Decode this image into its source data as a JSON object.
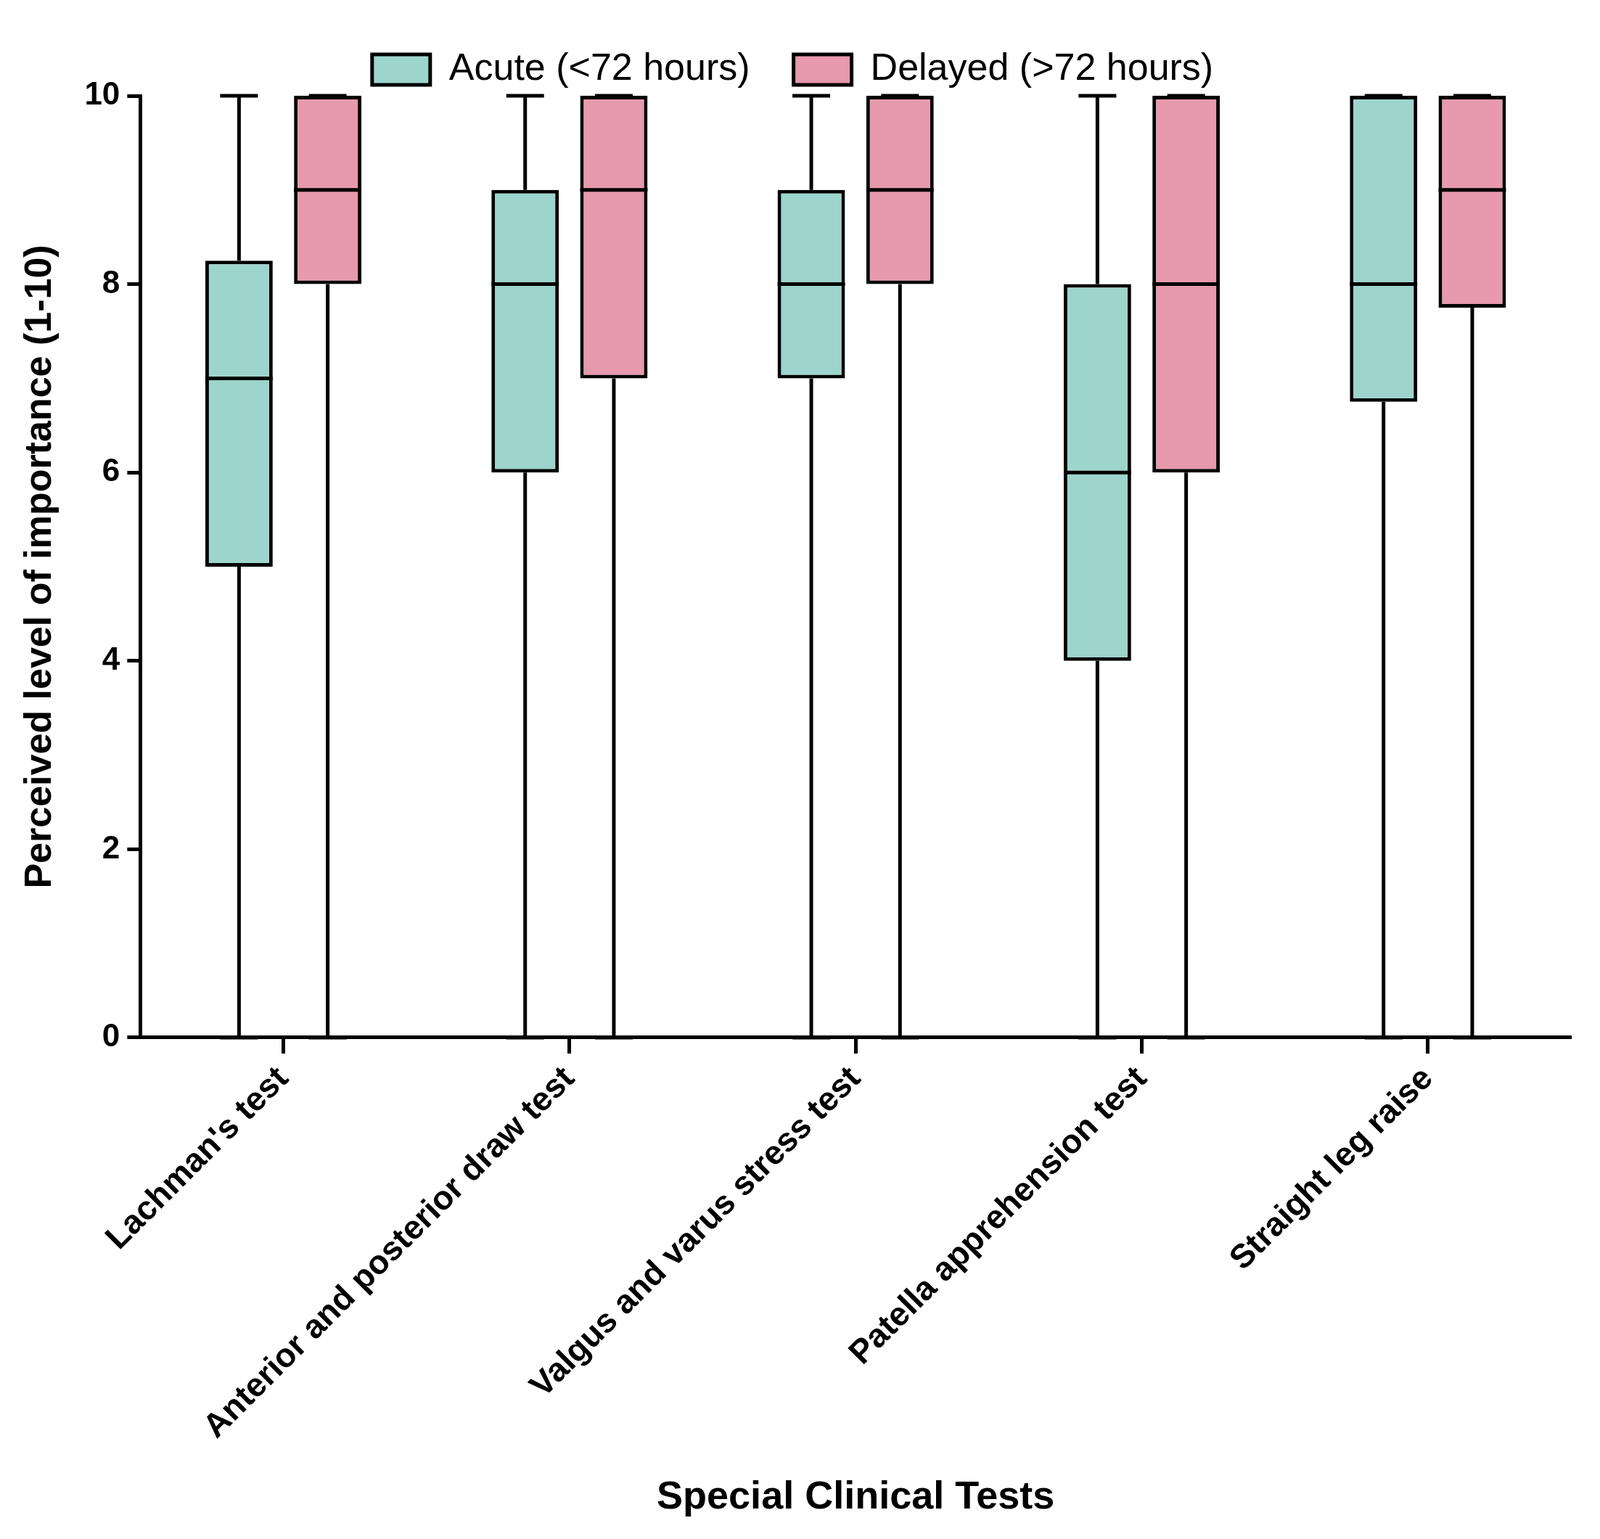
{
  "chart_data": {
    "type": "boxplot",
    "xlabel": "Special Clinical Tests",
    "ylabel": "Perceived level of importance (1-10)",
    "categories": [
      "Lachman's test",
      "Anterior and posterior draw test",
      "Valgus and varus stress test",
      "Patella apprehension test",
      "Straight leg raise"
    ],
    "series": [
      {
        "name": "Acute (<72 hours)",
        "color": "#9dd5cc",
        "min": [
          0,
          0,
          0,
          0,
          0
        ],
        "q1": [
          5,
          6,
          7,
          4,
          6.75
        ],
        "median": [
          7,
          8,
          8,
          6,
          8
        ],
        "q3": [
          8.25,
          9,
          9,
          8,
          10
        ],
        "max": [
          10,
          10,
          10,
          10,
          10
        ]
      },
      {
        "name": "Delayed (>72 hours)",
        "color": "#e799ad",
        "min": [
          0,
          0,
          0,
          0,
          0
        ],
        "q1": [
          8,
          7,
          8,
          6,
          7.75
        ],
        "median": [
          9,
          9,
          9,
          8,
          9
        ],
        "q3": [
          10,
          10,
          10,
          10,
          10
        ],
        "max": [
          10,
          10,
          10,
          10,
          10
        ]
      }
    ],
    "ylim": [
      0,
      10
    ],
    "yticks": [
      0,
      2,
      4,
      6,
      8,
      10
    ],
    "grid": false,
    "legend": "top"
  }
}
